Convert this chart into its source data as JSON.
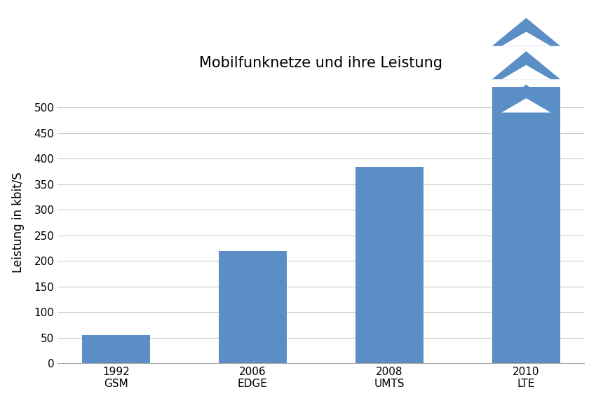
{
  "categories": [
    "1992\nGSM",
    "2006\nEDGE",
    "2008\nUMTS",
    "2010\nLTE"
  ],
  "values": [
    55,
    220,
    384,
    540
  ],
  "bar_color": "#5b8ec4",
  "title": "Mobilfunknetze und ihre Leistung",
  "ylabel": "Leistung in kbit/S",
  "ylim": [
    0,
    550
  ],
  "yticks": [
    0,
    50,
    100,
    150,
    200,
    250,
    300,
    350,
    400,
    450,
    500
  ],
  "background_color": "#ffffff",
  "grid_color": "#cccccc",
  "title_fontsize": 15,
  "label_fontsize": 12,
  "tick_fontsize": 11,
  "bar_width": 0.5,
  "lte_bar_value": 540,
  "chevron_count": 3,
  "chevron_color": "#5b8ec4",
  "chevron_white": "#ffffff"
}
